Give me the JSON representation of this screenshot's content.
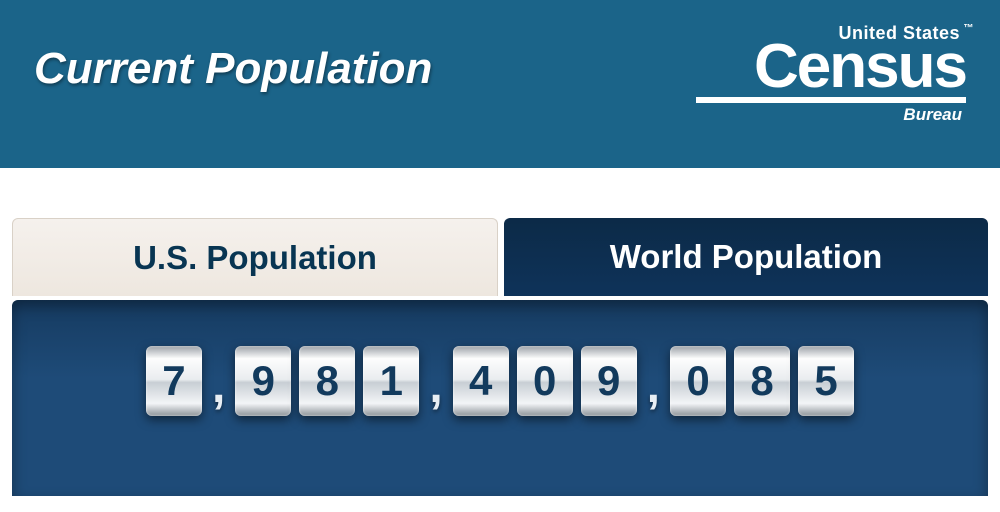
{
  "header": {
    "title": "Current Population",
    "background_color": "#1b6489",
    "title_color": "#ffffff",
    "title_fontsize": 44
  },
  "logo": {
    "top_line": "United States",
    "main": "Census",
    "bureau": "Bureau",
    "color": "#ffffff"
  },
  "tabs": {
    "us": {
      "label": "U.S. Population",
      "active": false,
      "bg_color": "#f1eae2",
      "text_color": "#083552"
    },
    "world": {
      "label": "World Population",
      "active": true,
      "bg_color": "#0e335a",
      "text_color": "#ffffff"
    }
  },
  "panel": {
    "background_color": "#1e4b78"
  },
  "counter": {
    "value": 7981409085,
    "digits": [
      "7",
      "9",
      "8",
      "1",
      "4",
      "0",
      "9",
      "0",
      "8",
      "5"
    ],
    "digit_text_color": "#123a5d",
    "digit_bg_light": "#f3f5f7",
    "digit_bg_dark": "#9aa0a6",
    "separator": ",",
    "separator_color": "#e8eef4"
  }
}
